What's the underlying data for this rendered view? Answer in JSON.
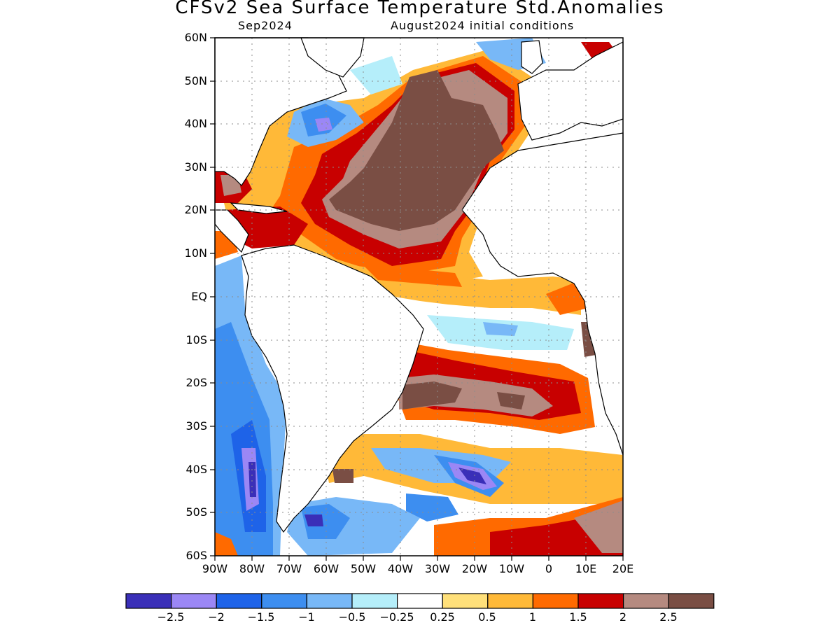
{
  "title": "CFSv2 Sea Surface Temperature Std.Anomalies",
  "subtitle_left": "Sep2024",
  "subtitle_right": "August2024 initial conditions",
  "latitude_labels": [
    "60N",
    "50N",
    "40N",
    "30N",
    "20N",
    "10N",
    "EQ",
    "10S",
    "20S",
    "30S",
    "40S",
    "50S",
    "60S"
  ],
  "longitude_labels": [
    "90W",
    "80W",
    "70W",
    "60W",
    "50W",
    "40W",
    "30W",
    "20W",
    "10W",
    "0",
    "10E",
    "20E"
  ],
  "colorbar": {
    "colors": [
      "#3a2fb8",
      "#9b87f5",
      "#1e63e8",
      "#3d8ef0",
      "#78b8f7",
      "#b5eefa",
      "#ffffff",
      "#ffe07a",
      "#ffb938",
      "#ff6a00",
      "#c80000",
      "#b58a80",
      "#7a4e44"
    ],
    "tick_labels": [
      "−2.5",
      "−2",
      "−1.5",
      "−1",
      "−0.5",
      "−0.25",
      "0.25",
      "0.5",
      "1",
      "1.5",
      "2",
      "2.5"
    ]
  },
  "map": {
    "region": "Atlantic Ocean",
    "lat_range": [
      "60S",
      "60N"
    ],
    "lon_range": [
      "90W",
      "20E"
    ],
    "grid": true,
    "land_color": "#ffffff",
    "coastline_color": "#000000"
  }
}
